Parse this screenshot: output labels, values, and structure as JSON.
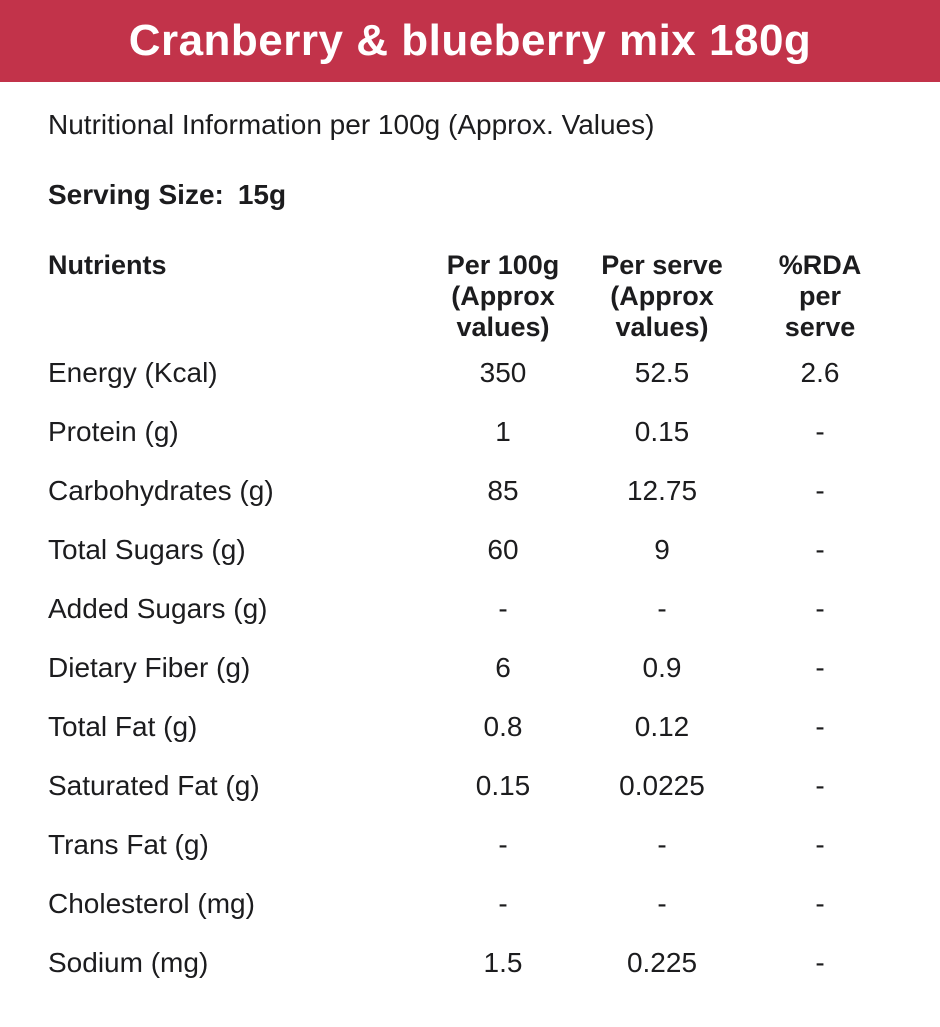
{
  "banner": {
    "title": "Cranberry & blueberry mix 180g",
    "bg_color": "#C2334A",
    "text_color": "#FFFFFF"
  },
  "subtitle": "Nutritional Information per 100g (Approx. Values)",
  "serving": {
    "label": "Serving Size:",
    "value": "15g"
  },
  "table": {
    "columns": [
      "Nutrients",
      "Per 100g\n(Approx\nvalues)",
      "Per serve\n(Approx\nvalues)",
      "%RDA\nper\nserve"
    ],
    "rows": [
      {
        "nutrient": "Energy (Kcal)",
        "per_100g": "350",
        "per_serve": "52.5",
        "rda": "2.6"
      },
      {
        "nutrient": "Protein (g)",
        "per_100g": "1",
        "per_serve": "0.15",
        "rda": "-"
      },
      {
        "nutrient": "Carbohydrates (g)",
        "per_100g": "85",
        "per_serve": "12.75",
        "rda": "-"
      },
      {
        "nutrient": "Total Sugars (g)",
        "per_100g": "60",
        "per_serve": "9",
        "rda": "-"
      },
      {
        "nutrient": "Added Sugars (g)",
        "per_100g": "-",
        "per_serve": "-",
        "rda": "-"
      },
      {
        "nutrient": "Dietary Fiber (g)",
        "per_100g": "6",
        "per_serve": "0.9",
        "rda": "-"
      },
      {
        "nutrient": "Total Fat (g)",
        "per_100g": "0.8",
        "per_serve": "0.12",
        "rda": "-"
      },
      {
        "nutrient": "Saturated Fat (g)",
        "per_100g": "0.15",
        "per_serve": "0.0225",
        "rda": "-"
      },
      {
        "nutrient": "Trans Fat (g)",
        "per_100g": "-",
        "per_serve": "-",
        "rda": "-"
      },
      {
        "nutrient": "Cholesterol (mg)",
        "per_100g": "-",
        "per_serve": "-",
        "rda": "-"
      },
      {
        "nutrient": "Sodium (mg)",
        "per_100g": "1.5",
        "per_serve": "0.225",
        "rda": "-"
      }
    ]
  }
}
